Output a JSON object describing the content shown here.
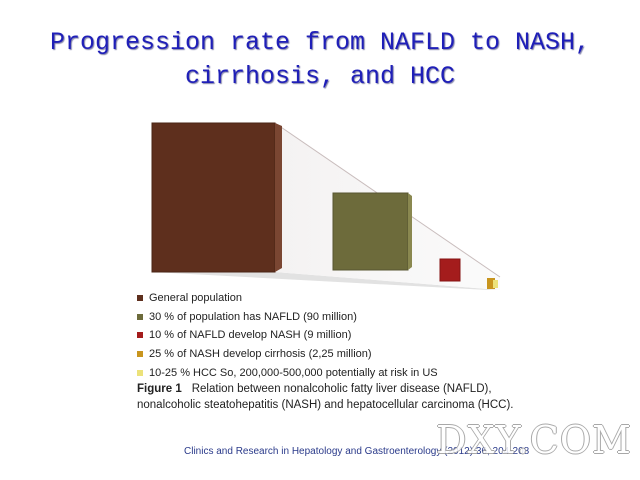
{
  "title": {
    "line1": "Progression rate from NAFLD to NASH,",
    "line2": "cirrhosis, and HCC"
  },
  "diagram": {
    "stages": [
      {
        "name": "general-population",
        "color": "#5e2f1d"
      },
      {
        "name": "nafld",
        "color": "#6d6b3b"
      },
      {
        "name": "nash",
        "color": "#a41c1c"
      },
      {
        "name": "cirrhosis",
        "color": "#c8951e"
      },
      {
        "name": "hcc",
        "color": "#ece27a"
      }
    ]
  },
  "legend": [
    {
      "label": "General population",
      "color": "#5e2f1d"
    },
    {
      "label": "30 % of population has NAFLD (90 million)",
      "color": "#6d6b3b"
    },
    {
      "label": "10 % of NAFLD develop NASH (9 million)",
      "color": "#a41c1c"
    },
    {
      "label": "25 % of NASH develop cirrhosis (2,25 million)",
      "color": "#c8951e"
    },
    {
      "label": "10-25 %  HCC So, 200,000-500,000 potentially at risk in US",
      "color": "#ece27a"
    }
  ],
  "caption": {
    "figure_label": "Figure 1",
    "text": "Relation between nonalcoholic fatty liver disease (NAFLD), nonalcoholic steatohepatitis (NASH) and hepatocellular carcinoma (HCC)."
  },
  "source": "Clinics and Research in Hepatology and Gastroenterology (2012) 36, 204-208",
  "watermark": "DXY.COM"
}
